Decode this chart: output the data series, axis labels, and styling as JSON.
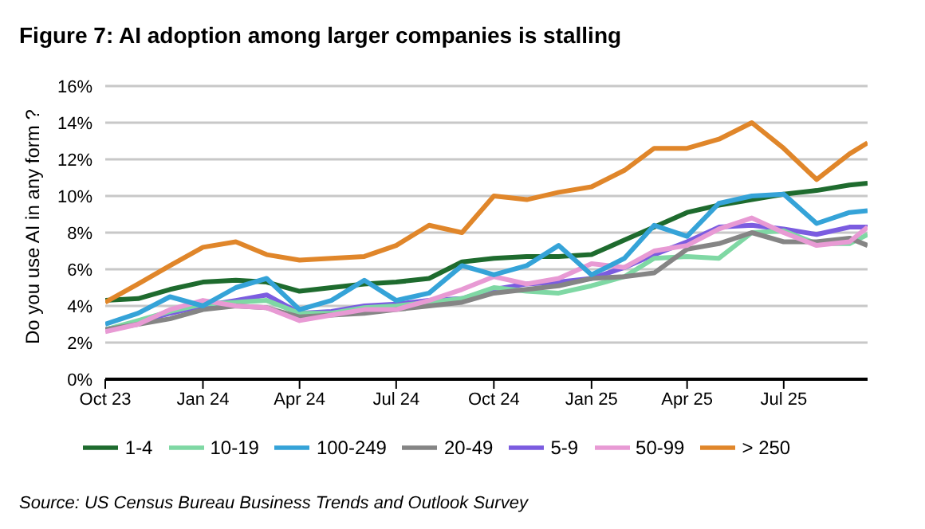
{
  "chart_data": {
    "type": "line",
    "title": "Figure 7: AI adoption among larger companies is stalling",
    "ylabel": "Do you use AI in any form ?",
    "annotations": [
      "Source: US Census Bureau Business Trends and Outlook Survey"
    ],
    "x": [
      "2023-10-01",
      "2023-11-01",
      "2023-12-01",
      "2024-01-01",
      "2024-02-01",
      "2024-03-01",
      "2024-04-01",
      "2024-05-01",
      "2024-06-01",
      "2024-07-01",
      "2024-08-01",
      "2024-09-01",
      "2024-10-01",
      "2024-11-01",
      "2024-12-01",
      "2025-01-01",
      "2025-02-01",
      "2025-03-01",
      "2025-04-01",
      "2025-05-01",
      "2025-06-01",
      "2025-07-01",
      "2025-08-01",
      "2025-09-01",
      "2025-09-18"
    ],
    "series": [
      {
        "name": "1-4",
        "color": "#1e6b2e",
        "values": [
          4.3,
          4.4,
          4.9,
          5.3,
          5.4,
          5.3,
          4.8,
          5.0,
          5.2,
          5.3,
          5.5,
          6.4,
          6.6,
          6.7,
          6.7,
          6.8,
          7.6,
          8.3,
          9.1,
          9.5,
          9.8,
          10.1,
          10.3,
          10.6,
          10.7
        ]
      },
      {
        "name": "5-9",
        "color": "#7b5ce0",
        "values": [
          2.7,
          3.1,
          3.6,
          4.0,
          4.3,
          4.6,
          3.6,
          3.7,
          4.0,
          4.1,
          4.3,
          4.4,
          4.9,
          5.2,
          5.3,
          5.5,
          6.1,
          6.8,
          7.5,
          8.3,
          8.4,
          8.2,
          7.9,
          8.3,
          8.3
        ]
      },
      {
        "name": "10-19",
        "color": "#7fd8a4",
        "values": [
          2.7,
          3.2,
          3.7,
          4.1,
          4.2,
          4.3,
          3.6,
          3.6,
          3.9,
          4.0,
          4.2,
          4.4,
          5.0,
          4.8,
          4.7,
          5.1,
          5.6,
          6.6,
          6.7,
          6.6,
          8.0,
          8.1,
          7.4,
          7.4,
          7.9
        ]
      },
      {
        "name": "20-49",
        "color": "#858585",
        "values": [
          2.7,
          3.0,
          3.3,
          3.8,
          4.0,
          3.9,
          3.4,
          3.5,
          3.6,
          3.8,
          4.0,
          4.2,
          4.7,
          4.9,
          5.1,
          5.5,
          5.6,
          5.8,
          7.1,
          7.4,
          8.0,
          7.5,
          7.5,
          7.7,
          7.3
        ]
      },
      {
        "name": "50-99",
        "color": "#e89ad4",
        "values": [
          2.6,
          3.0,
          3.8,
          4.3,
          4.0,
          3.9,
          3.2,
          3.5,
          3.8,
          3.8,
          4.3,
          4.9,
          5.6,
          5.2,
          5.5,
          6.3,
          6.1,
          7.0,
          7.3,
          8.2,
          8.8,
          8.0,
          7.3,
          7.5,
          8.3
        ]
      },
      {
        "name": "100-249",
        "color": "#35a3d8",
        "values": [
          3.0,
          3.6,
          4.5,
          4.0,
          5.0,
          5.5,
          3.8,
          4.3,
          5.4,
          4.3,
          4.7,
          6.2,
          5.7,
          6.2,
          7.3,
          5.7,
          6.6,
          8.4,
          7.8,
          9.6,
          10.0,
          10.1,
          8.5,
          9.1,
          9.2
        ]
      },
      {
        "name": "> 250",
        "color": "#e0862a",
        "values": [
          4.2,
          5.2,
          6.2,
          7.2,
          7.5,
          6.8,
          6.5,
          6.6,
          6.7,
          7.3,
          8.4,
          8.0,
          10.0,
          9.8,
          10.2,
          10.5,
          11.4,
          12.6,
          12.6,
          13.1,
          14.0,
          12.6,
          10.9,
          12.3,
          12.9
        ]
      }
    ],
    "xlim": [
      "2023-10-01",
      "2025-09-18"
    ],
    "xticks": [
      {
        "value": "2023-10-01",
        "label": "Oct 23"
      },
      {
        "value": "2024-01-01",
        "label": "Jan 24"
      },
      {
        "value": "2024-04-01",
        "label": "Apr 24"
      },
      {
        "value": "2024-07-01",
        "label": "Jul 24"
      },
      {
        "value": "2024-10-01",
        "label": "Oct 24"
      },
      {
        "value": "2025-01-01",
        "label": "Jan 25"
      },
      {
        "value": "2025-04-01",
        "label": "Apr 25"
      },
      {
        "value": "2025-07-01",
        "label": "Jul 25"
      }
    ],
    "ylim": [
      0,
      16
    ],
    "yticks": [
      {
        "value": 0,
        "label": "0%"
      },
      {
        "value": 2,
        "label": "2%"
      },
      {
        "value": 4,
        "label": "4%"
      },
      {
        "value": 6,
        "label": "6%"
      },
      {
        "value": 8,
        "label": "8%"
      },
      {
        "value": 10,
        "label": "10%"
      },
      {
        "value": 12,
        "label": "12%"
      },
      {
        "value": 14,
        "label": "14%"
      },
      {
        "value": 16,
        "label": "16%"
      }
    ],
    "grid": "y",
    "legend": "bottom",
    "marker": "none",
    "line_style": "solid"
  }
}
